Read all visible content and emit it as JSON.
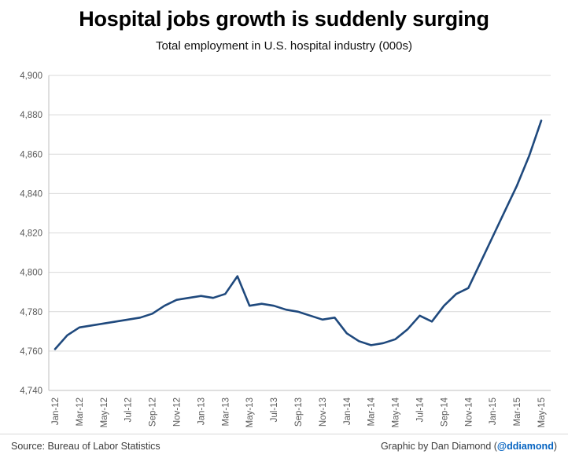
{
  "title": "Hospital jobs growth is suddenly surging",
  "subtitle": "Total employment in U.S. hospital industry (000s)",
  "footer": {
    "source": "Source: Bureau of Labor Statistics",
    "credit_prefix": "Graphic by Dan Diamond (",
    "credit_handle": "@ddiamond",
    "credit_suffix": ")"
  },
  "colors": {
    "line": "#1F497D",
    "grid": "#D9D9D9",
    "axis": "#BFBFBF",
    "tick_text": "#595959",
    "handle": "#0563C1"
  },
  "chart_data": {
    "type": "line",
    "title": "Hospital jobs growth is suddenly surging",
    "subtitle": "Total employment in U.S. hospital industry (000s)",
    "xlabel": "",
    "ylabel": "",
    "ylim": [
      4740,
      4900
    ],
    "ytick_step": 20,
    "ytick_labels": [
      "4,740",
      "4,760",
      "4,780",
      "4,800",
      "4,820",
      "4,840",
      "4,860",
      "4,880",
      "4,900"
    ],
    "x_tick_every": 2,
    "grid": "horizontal",
    "legend": "none",
    "categories": [
      "Jan-12",
      "Feb-12",
      "Mar-12",
      "Apr-12",
      "May-12",
      "Jun-12",
      "Jul-12",
      "Aug-12",
      "Sep-12",
      "Oct-12",
      "Nov-12",
      "Dec-12",
      "Jan-13",
      "Feb-13",
      "Mar-13",
      "Apr-13",
      "May-13",
      "Jun-13",
      "Jul-13",
      "Aug-13",
      "Sep-13",
      "Oct-13",
      "Nov-13",
      "Dec-13",
      "Jan-14",
      "Feb-14",
      "Mar-14",
      "Apr-14",
      "May-14",
      "Jun-14",
      "Jul-14",
      "Aug-14",
      "Sep-14",
      "Oct-14",
      "Nov-14",
      "Dec-14",
      "Jan-15",
      "Feb-15",
      "Mar-15",
      "Apr-15",
      "May-15"
    ],
    "values": [
      4761,
      4768,
      4772,
      4773,
      4774,
      4775,
      4776,
      4777,
      4779,
      4783,
      4786,
      4787,
      4788,
      4787,
      4789,
      4798,
      4783,
      4784,
      4783,
      4781,
      4780,
      4778,
      4776,
      4777,
      4769,
      4765,
      4763,
      4764,
      4766,
      4771,
      4778,
      4775,
      4783,
      4789,
      4792,
      4805,
      4818,
      4831,
      4844,
      4859,
      4877
    ]
  }
}
